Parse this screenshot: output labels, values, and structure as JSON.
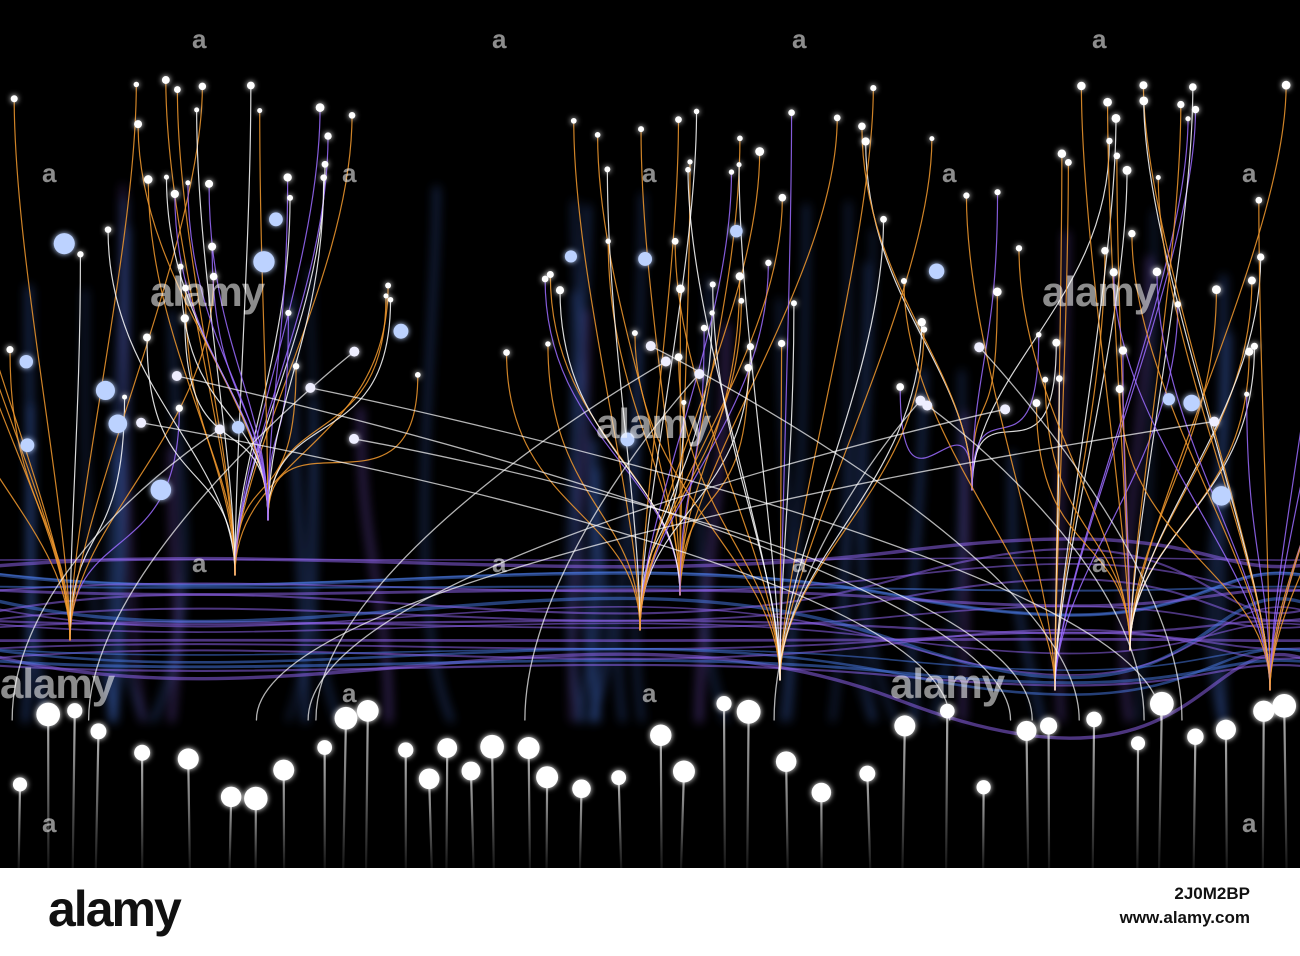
{
  "watermark": {
    "text": "alamy",
    "mark": "a"
  },
  "footer": {
    "logo": "alamy",
    "image_id": "2J0M2BP",
    "site": "www.alamy.com"
  },
  "palette": {
    "background": "#000000",
    "orange": "#f39a2e",
    "white": "#ffffff",
    "blue": "#4d7ff0",
    "violet": "#9b6bff"
  }
}
